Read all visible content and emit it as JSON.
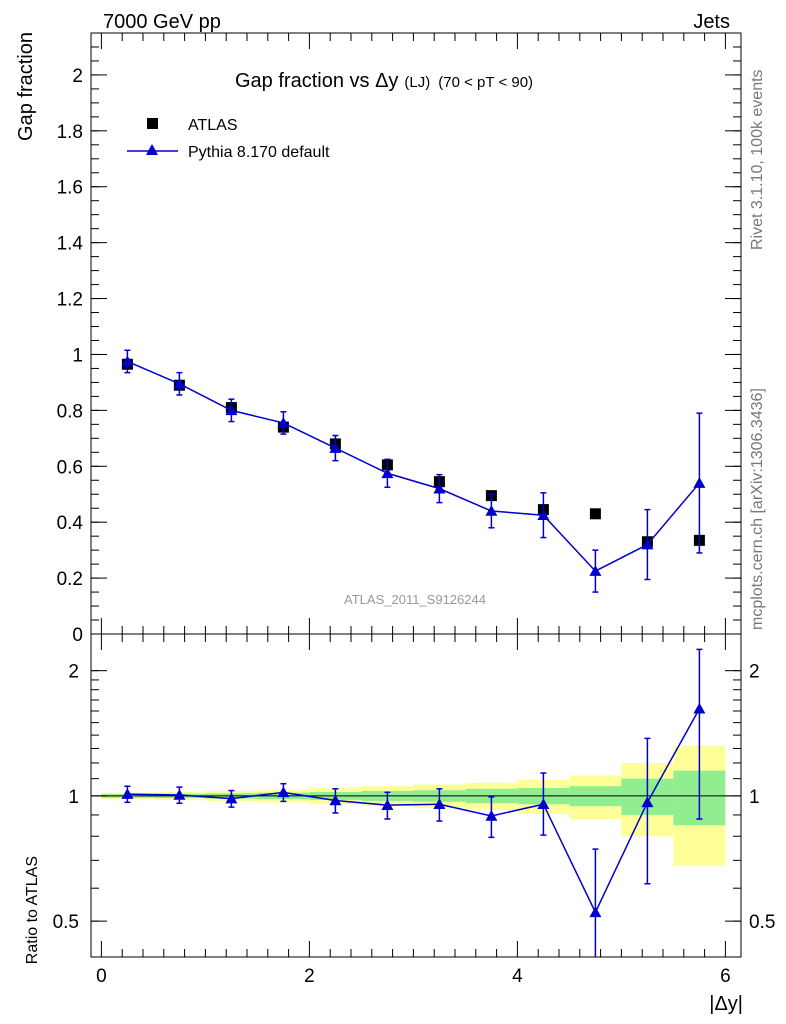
{
  "header": {
    "energy_label": "7000 GeV pp",
    "process_label": "Jets"
  },
  "side_text": {
    "rivet": "Rivet 3.1.10,  100k events",
    "mcplots": "mcplots.cern.ch [arXiv:1306.3436]"
  },
  "watermark": "ATLAS_2011_S9126244",
  "colors": {
    "mc": "#0000cc",
    "data": "#000000",
    "band_inner": "#90ee90",
    "band_outer": "#ffff99"
  },
  "chart_data": [
    {
      "type": "scatter",
      "panel": "main",
      "title_prefix": "Gap fraction vs ",
      "title_symbol": "Δy",
      "title_small": "(LJ)",
      "title_range": "(70 < pT <  90)",
      "ylabel": "Gap fraction",
      "xlim": [
        -0.1,
        6.15
      ],
      "ylim": [
        0,
        2.15
      ],
      "yticks": [
        0,
        0.2,
        0.4,
        0.6,
        0.8,
        1,
        1.2,
        1.4,
        1.6,
        1.8,
        2
      ],
      "ytick_labels": [
        "0",
        "0.2",
        "0.4",
        "0.6",
        "0.8",
        "1",
        "1.2",
        "1.4",
        "1.6",
        "1.8",
        "2"
      ],
      "legend_placement": "top-left",
      "x": [
        0.25,
        0.75,
        1.25,
        1.75,
        2.25,
        2.75,
        3.25,
        3.75,
        4.25,
        4.75,
        5.25,
        5.75
      ],
      "series": [
        {
          "name": "ATLAS",
          "marker": "square",
          "values": [
            0.965,
            0.89,
            0.81,
            0.74,
            0.68,
            0.605,
            0.545,
            0.495,
            0.445,
            0.43,
            0.33,
            0.335
          ],
          "err": [
            0.02,
            0.02,
            0.02,
            0.02,
            0.02,
            0.02,
            0.02,
            0.02,
            0.02,
            0.02,
            0.02,
            0.02
          ]
        },
        {
          "name": "Pythia 8.170 default",
          "marker": "triangle",
          "values": [
            0.975,
            0.895,
            0.8,
            0.755,
            0.665,
            0.575,
            0.52,
            0.44,
            0.425,
            0.225,
            0.32,
            0.54
          ],
          "err": [
            0.04,
            0.04,
            0.04,
            0.04,
            0.045,
            0.05,
            0.05,
            0.06,
            0.08,
            0.075,
            0.125,
            0.25
          ]
        }
      ]
    },
    {
      "type": "scatter",
      "panel": "ratio",
      "ylabel": "Ratio to ATLAS",
      "xlabel": "|Δy|",
      "xlim": [
        -0.1,
        6.15
      ],
      "ylim": [
        0.41,
        2.45
      ],
      "ylog": true,
      "yticks": [
        0.5,
        1,
        2
      ],
      "ytick_labels": [
        "0.5",
        "1",
        "2"
      ],
      "xticks": [
        0,
        2,
        4,
        6
      ],
      "xtick_labels": [
        "0",
        "2",
        "4",
        "6"
      ],
      "bins": [
        [
          0,
          0.5
        ],
        [
          0.5,
          1
        ],
        [
          1,
          1.5
        ],
        [
          1.5,
          2
        ],
        [
          2,
          2.5
        ],
        [
          2.5,
          3
        ],
        [
          3,
          3.5
        ],
        [
          3.5,
          4
        ],
        [
          4,
          4.5
        ],
        [
          4.5,
          5
        ],
        [
          5,
          5.5
        ],
        [
          5.5,
          6
        ]
      ],
      "band_inner": [
        0.01,
        0.012,
        0.015,
        0.018,
        0.022,
        0.028,
        0.032,
        0.04,
        0.045,
        0.055,
        0.1,
        0.15
      ],
      "band_outer": [
        0.018,
        0.022,
        0.028,
        0.035,
        0.045,
        0.055,
        0.065,
        0.075,
        0.095,
        0.12,
        0.2,
        0.32
      ],
      "x": [
        0.25,
        0.75,
        1.25,
        1.75,
        2.25,
        2.75,
        3.25,
        3.75,
        4.25,
        4.75,
        5.25,
        5.75
      ],
      "values": [
        1.01,
        1.005,
        0.985,
        1.02,
        0.975,
        0.95,
        0.955,
        0.895,
        0.955,
        0.525,
        0.965,
        1.62
      ],
      "err_low": [
        0.045,
        0.045,
        0.045,
        0.05,
        0.065,
        0.07,
        0.085,
        0.1,
        0.15,
        0.2,
        0.35,
        0.74
      ],
      "err_high": [
        0.045,
        0.045,
        0.045,
        0.05,
        0.065,
        0.07,
        0.085,
        0.1,
        0.18,
        0.22,
        0.41,
        0.63
      ]
    }
  ]
}
